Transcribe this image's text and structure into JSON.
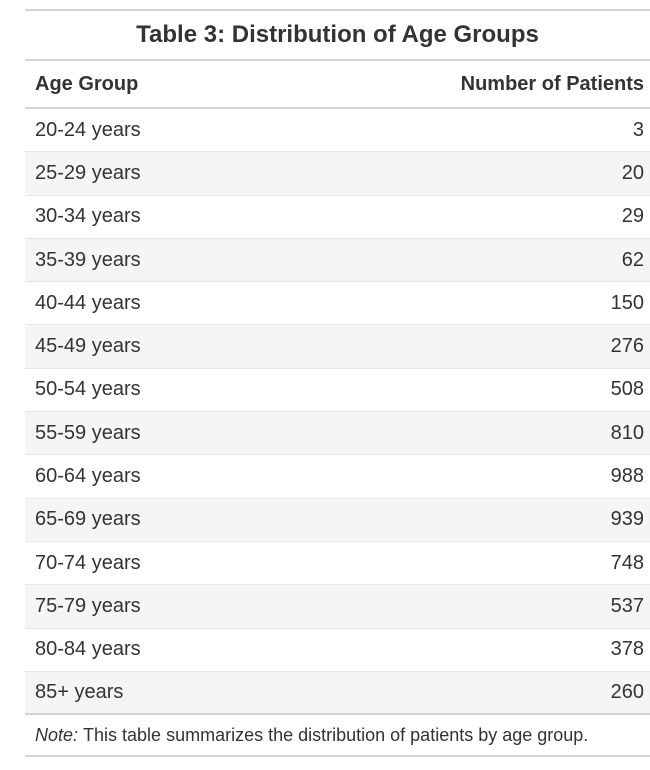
{
  "table": {
    "title": "Table 3: Distribution of Age Groups",
    "note_label": "Note:",
    "note_text": "This table summarizes the distribution of patients by age group."
  },
  "chart_data": {
    "type": "table",
    "title": "Table 3: Distribution of Age Groups",
    "columns": [
      "Age Group",
      "Number of Patients"
    ],
    "rows": [
      [
        "20-24 years",
        3
      ],
      [
        "25-29 years",
        20
      ],
      [
        "30-34 years",
        29
      ],
      [
        "35-39 years",
        62
      ],
      [
        "40-44 years",
        150
      ],
      [
        "45-49 years",
        276
      ],
      [
        "50-54 years",
        508
      ],
      [
        "55-59 years",
        810
      ],
      [
        "60-64 years",
        988
      ],
      [
        "65-69 years",
        939
      ],
      [
        "70-74 years",
        748
      ],
      [
        "75-79 years",
        537
      ],
      [
        "80-84 years",
        378
      ],
      [
        "85+ years",
        260
      ]
    ]
  }
}
